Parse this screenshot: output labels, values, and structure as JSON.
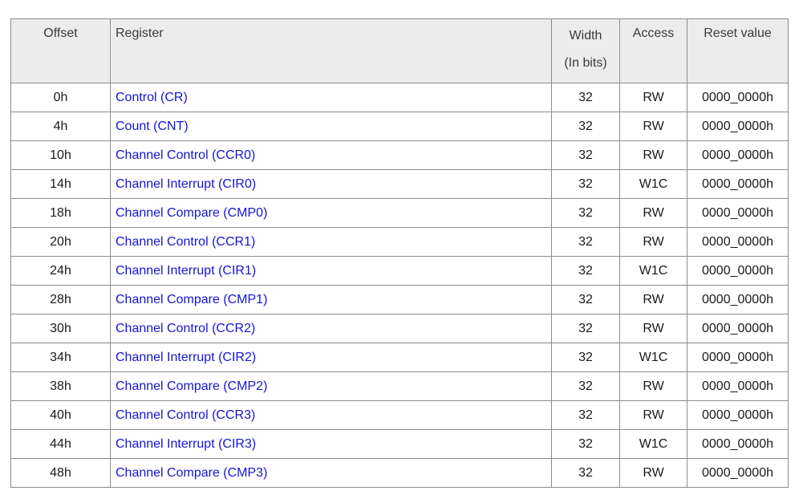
{
  "table": {
    "headers": {
      "offset": "Offset",
      "register": "Register",
      "width_line1": "Width",
      "width_line2": "(In bits)",
      "access": "Access",
      "reset": "Reset value"
    },
    "rows": [
      {
        "offset": "0h",
        "register": "Control (CR)",
        "width": "32",
        "access": "RW",
        "reset": "0000_0000h"
      },
      {
        "offset": "4h",
        "register": "Count (CNT)",
        "width": "32",
        "access": "RW",
        "reset": "0000_0000h"
      },
      {
        "offset": "10h",
        "register": "Channel Control (CCR0)",
        "width": "32",
        "access": "RW",
        "reset": "0000_0000h"
      },
      {
        "offset": "14h",
        "register": "Channel Interrupt (CIR0)",
        "width": "32",
        "access": "W1C",
        "reset": "0000_0000h"
      },
      {
        "offset": "18h",
        "register": "Channel Compare (CMP0)",
        "width": "32",
        "access": "RW",
        "reset": "0000_0000h"
      },
      {
        "offset": "20h",
        "register": "Channel Control (CCR1)",
        "width": "32",
        "access": "RW",
        "reset": "0000_0000h"
      },
      {
        "offset": "24h",
        "register": "Channel Interrupt (CIR1)",
        "width": "32",
        "access": "W1C",
        "reset": "0000_0000h"
      },
      {
        "offset": "28h",
        "register": "Channel Compare (CMP1)",
        "width": "32",
        "access": "RW",
        "reset": "0000_0000h"
      },
      {
        "offset": "30h",
        "register": "Channel Control (CCR2)",
        "width": "32",
        "access": "RW",
        "reset": "0000_0000h"
      },
      {
        "offset": "34h",
        "register": "Channel Interrupt (CIR2)",
        "width": "32",
        "access": "W1C",
        "reset": "0000_0000h"
      },
      {
        "offset": "38h",
        "register": "Channel Compare (CMP2)",
        "width": "32",
        "access": "RW",
        "reset": "0000_0000h"
      },
      {
        "offset": "40h",
        "register": "Channel Control (CCR3)",
        "width": "32",
        "access": "RW",
        "reset": "0000_0000h"
      },
      {
        "offset": "44h",
        "register": "Channel Interrupt (CIR3)",
        "width": "32",
        "access": "W1C",
        "reset": "0000_0000h"
      },
      {
        "offset": "48h",
        "register": "Channel Compare (CMP3)",
        "width": "32",
        "access": "RW",
        "reset": "0000_0000h"
      }
    ],
    "colors": {
      "header_bg": "#ececec",
      "link": "#1414d9",
      "border": "#8c8c8c"
    }
  }
}
